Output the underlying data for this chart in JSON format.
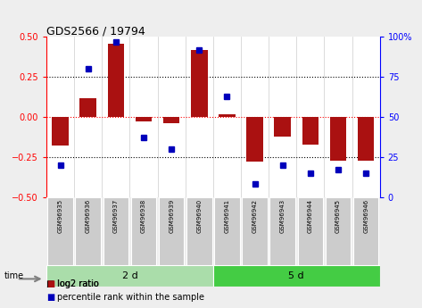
{
  "title": "GDS2566 / 19794",
  "samples": [
    "GSM96935",
    "GSM96936",
    "GSM96937",
    "GSM96938",
    "GSM96939",
    "GSM96940",
    "GSM96941",
    "GSM96942",
    "GSM96943",
    "GSM96944",
    "GSM96945",
    "GSM96946"
  ],
  "log2_ratio": [
    -0.18,
    0.12,
    0.46,
    -0.03,
    -0.04,
    0.42,
    0.02,
    -0.28,
    -0.12,
    -0.17,
    -0.27,
    -0.27
  ],
  "percentile_rank": [
    20,
    80,
    97,
    37,
    30,
    92,
    63,
    8,
    20,
    15,
    17,
    15
  ],
  "groups": [
    {
      "label": "2 d",
      "start": 0,
      "end": 6,
      "color": "#aaddaa"
    },
    {
      "label": "5 d",
      "start": 6,
      "end": 12,
      "color": "#44cc44"
    }
  ],
  "ylim_left": [
    -0.5,
    0.5
  ],
  "ylim_right": [
    0,
    100
  ],
  "yticks_left": [
    -0.5,
    -0.25,
    0.0,
    0.25,
    0.5
  ],
  "yticks_right": [
    0,
    25,
    50,
    75,
    100
  ],
  "hlines_dotted": [
    0.25,
    -0.25
  ],
  "hline_red": 0.0,
  "bar_color": "#aa1111",
  "dot_color": "#0000bb",
  "background_color": "#eeeeee",
  "plot_bg": "#ffffff",
  "sample_box_color": "#cccccc",
  "time_label": "time",
  "legend_log2": "log2 ratio",
  "legend_pct": "percentile rank within the sample",
  "title_fontsize": 9,
  "tick_fontsize": 7,
  "sample_fontsize": 5,
  "group_fontsize": 8,
  "legend_fontsize": 7
}
